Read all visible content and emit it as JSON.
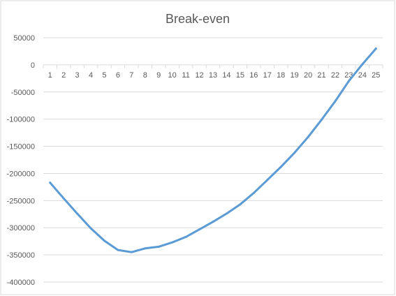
{
  "chart_data": {
    "type": "line",
    "title": "Break-even",
    "xlabel": "",
    "ylabel": "",
    "x": [
      1,
      2,
      3,
      4,
      5,
      6,
      7,
      8,
      9,
      10,
      11,
      12,
      13,
      14,
      15,
      16,
      17,
      18,
      19,
      20,
      21,
      22,
      23,
      24,
      25
    ],
    "series": [
      {
        "name": "",
        "color": "#5b9bd5",
        "values": [
          -217000,
          -246000,
          -274000,
          -301000,
          -324000,
          -341000,
          -345000,
          -338000,
          -335000,
          -327000,
          -317000,
          -303000,
          -289000,
          -274000,
          -257000,
          -236000,
          -212000,
          -188000,
          -162000,
          -133000,
          -101000,
          -67000,
          -30000,
          1000,
          30000
        ]
      }
    ],
    "ylim": [
      -400000,
      50000
    ],
    "yticks": [
      50000,
      0,
      -50000,
      -100000,
      -150000,
      -200000,
      -250000,
      -300000,
      -350000,
      -400000
    ],
    "grid": true,
    "legend": "none",
    "gridline_color": "#d9d9d9",
    "axis_color": "#d9d9d9",
    "text_color": "#595959"
  }
}
